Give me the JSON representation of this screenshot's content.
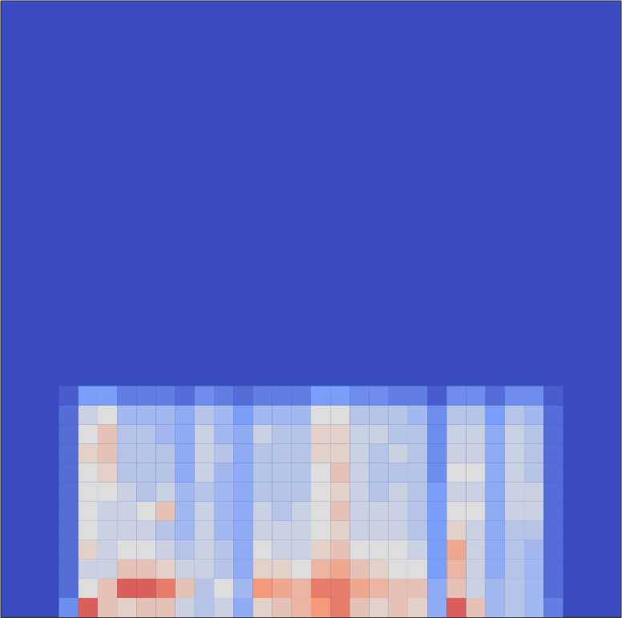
{
  "chart_data": {
    "type": "heatmap",
    "x": [
      3,
      4,
      5,
      6,
      7,
      8,
      9,
      10,
      11,
      12,
      13,
      14,
      15,
      16,
      17,
      18,
      19,
      20,
      21,
      22,
      23,
      24,
      25,
      26,
      27,
      28,
      29
    ],
    "y": [
      0,
      1,
      2,
      3,
      4,
      5,
      6,
      7,
      8,
      9,
      10,
      11,
      12
    ],
    "cells": [
      [
        0.2,
        0.85,
        0.6,
        0.55,
        0.6,
        0.6,
        0.45,
        0.4,
        0.45,
        0.3,
        0.55,
        0.6,
        0.65,
        0.75,
        0.8,
        0.6,
        0.55,
        0.6,
        0.55,
        0.3,
        0.85,
        0.6,
        0.35,
        0.4,
        0.35,
        0.15
      ],
      [
        0.1,
        0.5,
        0.6,
        0.85,
        0.85,
        0.8,
        0.6,
        0.4,
        0.5,
        0.35,
        0.75,
        0.7,
        0.65,
        0.8,
        0.8,
        0.7,
        0.65,
        0.6,
        0.6,
        0.3,
        0.6,
        0.45,
        0.35,
        0.4,
        0.35,
        0.1
      ],
      [
        0.1,
        0.45,
        0.45,
        0.6,
        0.6,
        0.55,
        0.45,
        0.45,
        0.4,
        0.3,
        0.55,
        0.55,
        0.5,
        0.65,
        0.7,
        0.6,
        0.55,
        0.5,
        0.5,
        0.25,
        0.65,
        0.45,
        0.3,
        0.4,
        0.35,
        0.1
      ],
      [
        0.1,
        0.55,
        0.45,
        0.5,
        0.5,
        0.45,
        0.4,
        0.45,
        0.4,
        0.3,
        0.5,
        0.45,
        0.45,
        0.55,
        0.6,
        0.5,
        0.5,
        0.5,
        0.45,
        0.25,
        0.7,
        0.45,
        0.3,
        0.4,
        0.35,
        0.1
      ],
      [
        0.1,
        0.5,
        0.45,
        0.45,
        0.45,
        0.4,
        0.35,
        0.45,
        0.35,
        0.3,
        0.45,
        0.45,
        0.45,
        0.5,
        0.55,
        0.45,
        0.45,
        0.45,
        0.4,
        0.25,
        0.55,
        0.45,
        0.3,
        0.4,
        0.4,
        0.1
      ],
      [
        0.1,
        0.5,
        0.45,
        0.45,
        0.5,
        0.6,
        0.35,
        0.45,
        0.35,
        0.3,
        0.45,
        0.4,
        0.45,
        0.5,
        0.6,
        0.45,
        0.45,
        0.45,
        0.4,
        0.25,
        0.5,
        0.5,
        0.3,
        0.45,
        0.45,
        0.1
      ],
      [
        0.1,
        0.5,
        0.5,
        0.45,
        0.4,
        0.45,
        0.35,
        0.4,
        0.35,
        0.3,
        0.4,
        0.4,
        0.4,
        0.5,
        0.55,
        0.45,
        0.4,
        0.45,
        0.4,
        0.25,
        0.45,
        0.45,
        0.3,
        0.45,
        0.45,
        0.1
      ],
      [
        0.1,
        0.5,
        0.55,
        0.4,
        0.4,
        0.4,
        0.3,
        0.45,
        0.35,
        0.3,
        0.4,
        0.4,
        0.4,
        0.5,
        0.6,
        0.45,
        0.4,
        0.4,
        0.4,
        0.2,
        0.5,
        0.5,
        0.3,
        0.45,
        0.4,
        0.1
      ],
      [
        0.1,
        0.55,
        0.6,
        0.4,
        0.4,
        0.4,
        0.3,
        0.45,
        0.4,
        0.3,
        0.4,
        0.4,
        0.4,
        0.55,
        0.55,
        0.45,
        0.4,
        0.45,
        0.4,
        0.2,
        0.45,
        0.45,
        0.3,
        0.45,
        0.4,
        0.1
      ],
      [
        0.1,
        0.5,
        0.6,
        0.4,
        0.4,
        0.35,
        0.3,
        0.45,
        0.35,
        0.3,
        0.45,
        0.4,
        0.4,
        0.55,
        0.55,
        0.45,
        0.45,
        0.4,
        0.4,
        0.2,
        0.45,
        0.45,
        0.3,
        0.45,
        0.4,
        0.1
      ],
      [
        0.1,
        0.45,
        0.5,
        0.35,
        0.35,
        0.35,
        0.3,
        0.4,
        0.35,
        0.25,
        0.35,
        0.35,
        0.35,
        0.5,
        0.5,
        0.4,
        0.4,
        0.4,
        0.35,
        0.2,
        0.4,
        0.4,
        0.25,
        0.4,
        0.35,
        0.1
      ],
      [
        0.05,
        0.25,
        0.25,
        0.15,
        0.15,
        0.15,
        0.1,
        0.2,
        0.15,
        0.1,
        0.15,
        0.15,
        0.15,
        0.25,
        0.25,
        0.2,
        0.2,
        0.15,
        0.15,
        0.05,
        0.2,
        0.2,
        0.1,
        0.2,
        0.2,
        0.05
      ]
    ],
    "xlim": [
      0,
      32
    ],
    "ylim": [
      0,
      32
    ],
    "zlim": [
      0,
      1
    ],
    "tick_labels": false,
    "grid": false
  }
}
